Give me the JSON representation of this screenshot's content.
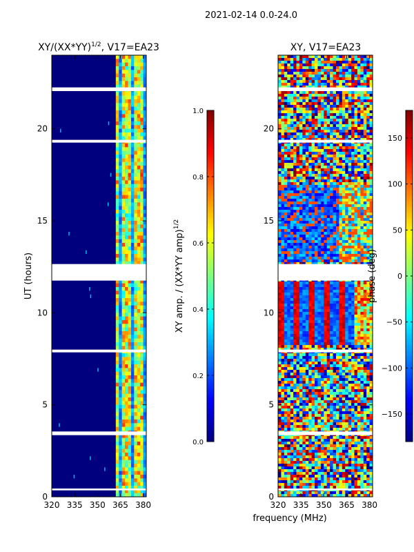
{
  "suptitle": "2021-02-14 0.0-24.0",
  "colors": {
    "jet_stops": [
      "#00007f",
      "#0000ff",
      "#007fff",
      "#00ffff",
      "#7fff7f",
      "#ffff00",
      "#ff7f00",
      "#ff0000",
      "#7f0000"
    ],
    "gap": "#ffffff",
    "axis": "#000000"
  },
  "chart_data": [
    {
      "type": "heatmap",
      "title_main": "XY/(XX*YY)",
      "title_sup": "1/2",
      "title_tail": ", V17=EA23",
      "xlabel": "",
      "ylabel": "UT (hours)",
      "x_range": [
        320,
        382
      ],
      "y_range": [
        0,
        24
      ],
      "x_ticks": [
        320,
        335,
        350,
        365,
        380
      ],
      "y_ticks": [
        0,
        5,
        10,
        15,
        20
      ],
      "colorbar": {
        "label_main": "XY amp. / (XX*YY amp)",
        "label_sup": "1/2",
        "range": [
          0.0,
          1.0
        ],
        "ticks": [
          "0.0",
          "0.2",
          "0.4",
          "0.6",
          "0.8",
          "1.0"
        ],
        "tick_values": [
          0.0,
          0.2,
          0.4,
          0.6,
          0.8,
          1.0
        ]
      },
      "data_gaps_hours": [
        [
          11.75,
          12.65
        ],
        [
          3.35,
          3.55
        ],
        [
          7.85,
          8.0
        ],
        [
          19.25,
          19.4
        ],
        [
          22.05,
          22.25
        ],
        [
          0.35,
          0.45
        ]
      ]
    },
    {
      "type": "heatmap",
      "title": "XY, V17=EA23",
      "xlabel": "frequency (MHz)",
      "ylabel": "",
      "x_range": [
        320,
        382
      ],
      "y_range": [
        0,
        24
      ],
      "x_ticks": [
        320,
        335,
        350,
        365,
        380
      ],
      "y_ticks": [
        0,
        5,
        10,
        15,
        20
      ],
      "colorbar": {
        "label": "phase (deg)",
        "range": [
          -180,
          180
        ],
        "ticks": [
          "−150",
          "−100",
          "−50",
          "0",
          "50",
          "100",
          "150"
        ],
        "tick_values": [
          -150,
          -100,
          -50,
          0,
          50,
          100,
          150
        ]
      },
      "data_gaps_hours": [
        [
          11.75,
          12.65
        ],
        [
          3.35,
          3.55
        ],
        [
          7.85,
          8.0
        ],
        [
          19.25,
          19.4
        ],
        [
          22.05,
          22.25
        ],
        [
          0.35,
          0.45
        ]
      ]
    }
  ]
}
